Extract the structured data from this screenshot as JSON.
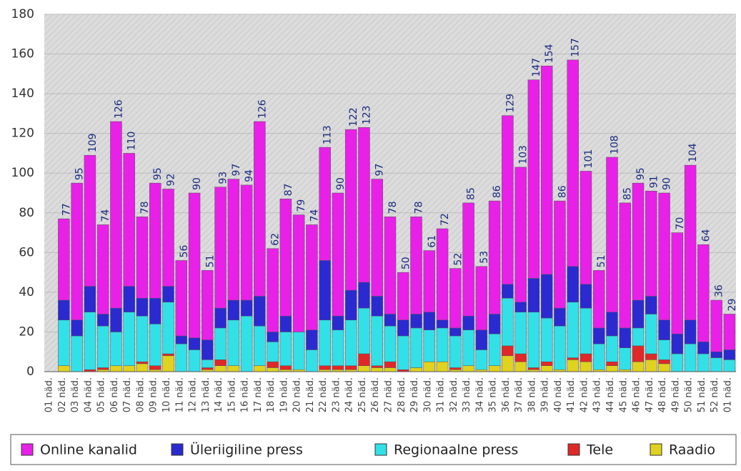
{
  "chart_data": {
    "type": "stacked_bar",
    "categories": [
      "01 näd.",
      "02 näd.",
      "03 näd.",
      "04 näd.",
      "05 näd.",
      "06 näd.",
      "07 näd.",
      "08 näd.",
      "09 näd.",
      "10 näd.",
      "11 näd.",
      "12 näd.",
      "13 näd.",
      "14 näd.",
      "15 näd.",
      "16 näd.",
      "17 näd.",
      "18 näd.",
      "19 näd.",
      "20 näd.",
      "21 näd.",
      "22 näd.",
      "23 näd.",
      "24 näd.",
      "25 näd.",
      "26 näd.",
      "27 näd.",
      "28 näd.",
      "29 näd.",
      "30 näd.",
      "31 näd.",
      "32 näd.",
      "33 näd.",
      "34 näd.",
      "35 näd.",
      "36 näd.",
      "37 näd.",
      "38 näd.",
      "39 näd.",
      "40 näd.",
      "41 näd.",
      "42 näd.",
      "43 näd.",
      "44 näd.",
      "45 näd.",
      "46 näd.",
      "47 näd.",
      "48 näd.",
      "49 näd.",
      "50 näd.",
      "51 näd.",
      "52 näd.",
      "01 näd."
    ],
    "totals": [
      null,
      77,
      95,
      109,
      74,
      126,
      110,
      78,
      95,
      92,
      56,
      90,
      51,
      93,
      97,
      94,
      126,
      62,
      87,
      79,
      74,
      113,
      90,
      122,
      123,
      97,
      78,
      50,
      78,
      61,
      72,
      52,
      85,
      53,
      86,
      129,
      103,
      147,
      154,
      86,
      157,
      101,
      51,
      108,
      85,
      95,
      91,
      90,
      70,
      104,
      64,
      36,
      29
    ],
    "series": [
      {
        "name": "Raadio",
        "color": "#e0d21e",
        "values": [
          null,
          3,
          0,
          0,
          1,
          3,
          3,
          4,
          1,
          8,
          0,
          0,
          1,
          3,
          3,
          0,
          3,
          2,
          1,
          1,
          0,
          1,
          1,
          1,
          3,
          2,
          2,
          0,
          2,
          5,
          5,
          1,
          3,
          1,
          3,
          8,
          5,
          1,
          3,
          1,
          6,
          5,
          1,
          3,
          1,
          5,
          6,
          4,
          0,
          0,
          0,
          0,
          0
        ]
      },
      {
        "name": "Tele",
        "color": "#e02828",
        "values": [
          null,
          0,
          0,
          1,
          1,
          0,
          0,
          1,
          2,
          1,
          0,
          0,
          1,
          3,
          0,
          0,
          0,
          3,
          2,
          0,
          0,
          2,
          2,
          2,
          6,
          1,
          3,
          1,
          0,
          0,
          0,
          1,
          0,
          0,
          0,
          5,
          4,
          1,
          2,
          0,
          1,
          4,
          0,
          2,
          0,
          8,
          3,
          2,
          0,
          0,
          0,
          0,
          0
        ]
      },
      {
        "name": "Regionaalne press",
        "color": "#32e0e8",
        "values": [
          null,
          23,
          18,
          29,
          21,
          17,
          27,
          23,
          21,
          26,
          14,
          11,
          4,
          16,
          23,
          28,
          20,
          10,
          17,
          19,
          11,
          23,
          18,
          23,
          23,
          25,
          18,
          17,
          20,
          16,
          17,
          16,
          18,
          10,
          16,
          24,
          21,
          28,
          22,
          22,
          28,
          23,
          13,
          13,
          11,
          9,
          20,
          10,
          9,
          14,
          9,
          7,
          6
        ]
      },
      {
        "name": "Üleriigiline press",
        "color": "#2a2ad0",
        "values": [
          null,
          10,
          8,
          13,
          6,
          12,
          13,
          9,
          13,
          8,
          4,
          6,
          10,
          10,
          10,
          8,
          15,
          5,
          8,
          0,
          10,
          30,
          7,
          15,
          13,
          10,
          6,
          8,
          7,
          9,
          4,
          4,
          7,
          10,
          10,
          7,
          5,
          17,
          22,
          9,
          18,
          12,
          8,
          12,
          10,
          14,
          9,
          10,
          10,
          12,
          6,
          3,
          5
        ]
      },
      {
        "name": "Online kanalid",
        "color": "#e820e8",
        "values": [
          null,
          41,
          69,
          66,
          45,
          94,
          67,
          41,
          58,
          49,
          38,
          73,
          35,
          61,
          61,
          58,
          88,
          42,
          59,
          59,
          53,
          57,
          62,
          81,
          78,
          59,
          49,
          24,
          49,
          31,
          46,
          30,
          57,
          32,
          57,
          85,
          68,
          100,
          105,
          54,
          104,
          57,
          29,
          78,
          63,
          59,
          53,
          64,
          51,
          78,
          49,
          26,
          18
        ]
      }
    ],
    "legend_order": [
      4,
      3,
      2,
      1,
      0
    ],
    "ylim": [
      0,
      180
    ],
    "yticks": [
      0,
      20,
      40,
      60,
      80,
      100,
      120,
      140,
      160,
      180
    ],
    "grid": true
  }
}
